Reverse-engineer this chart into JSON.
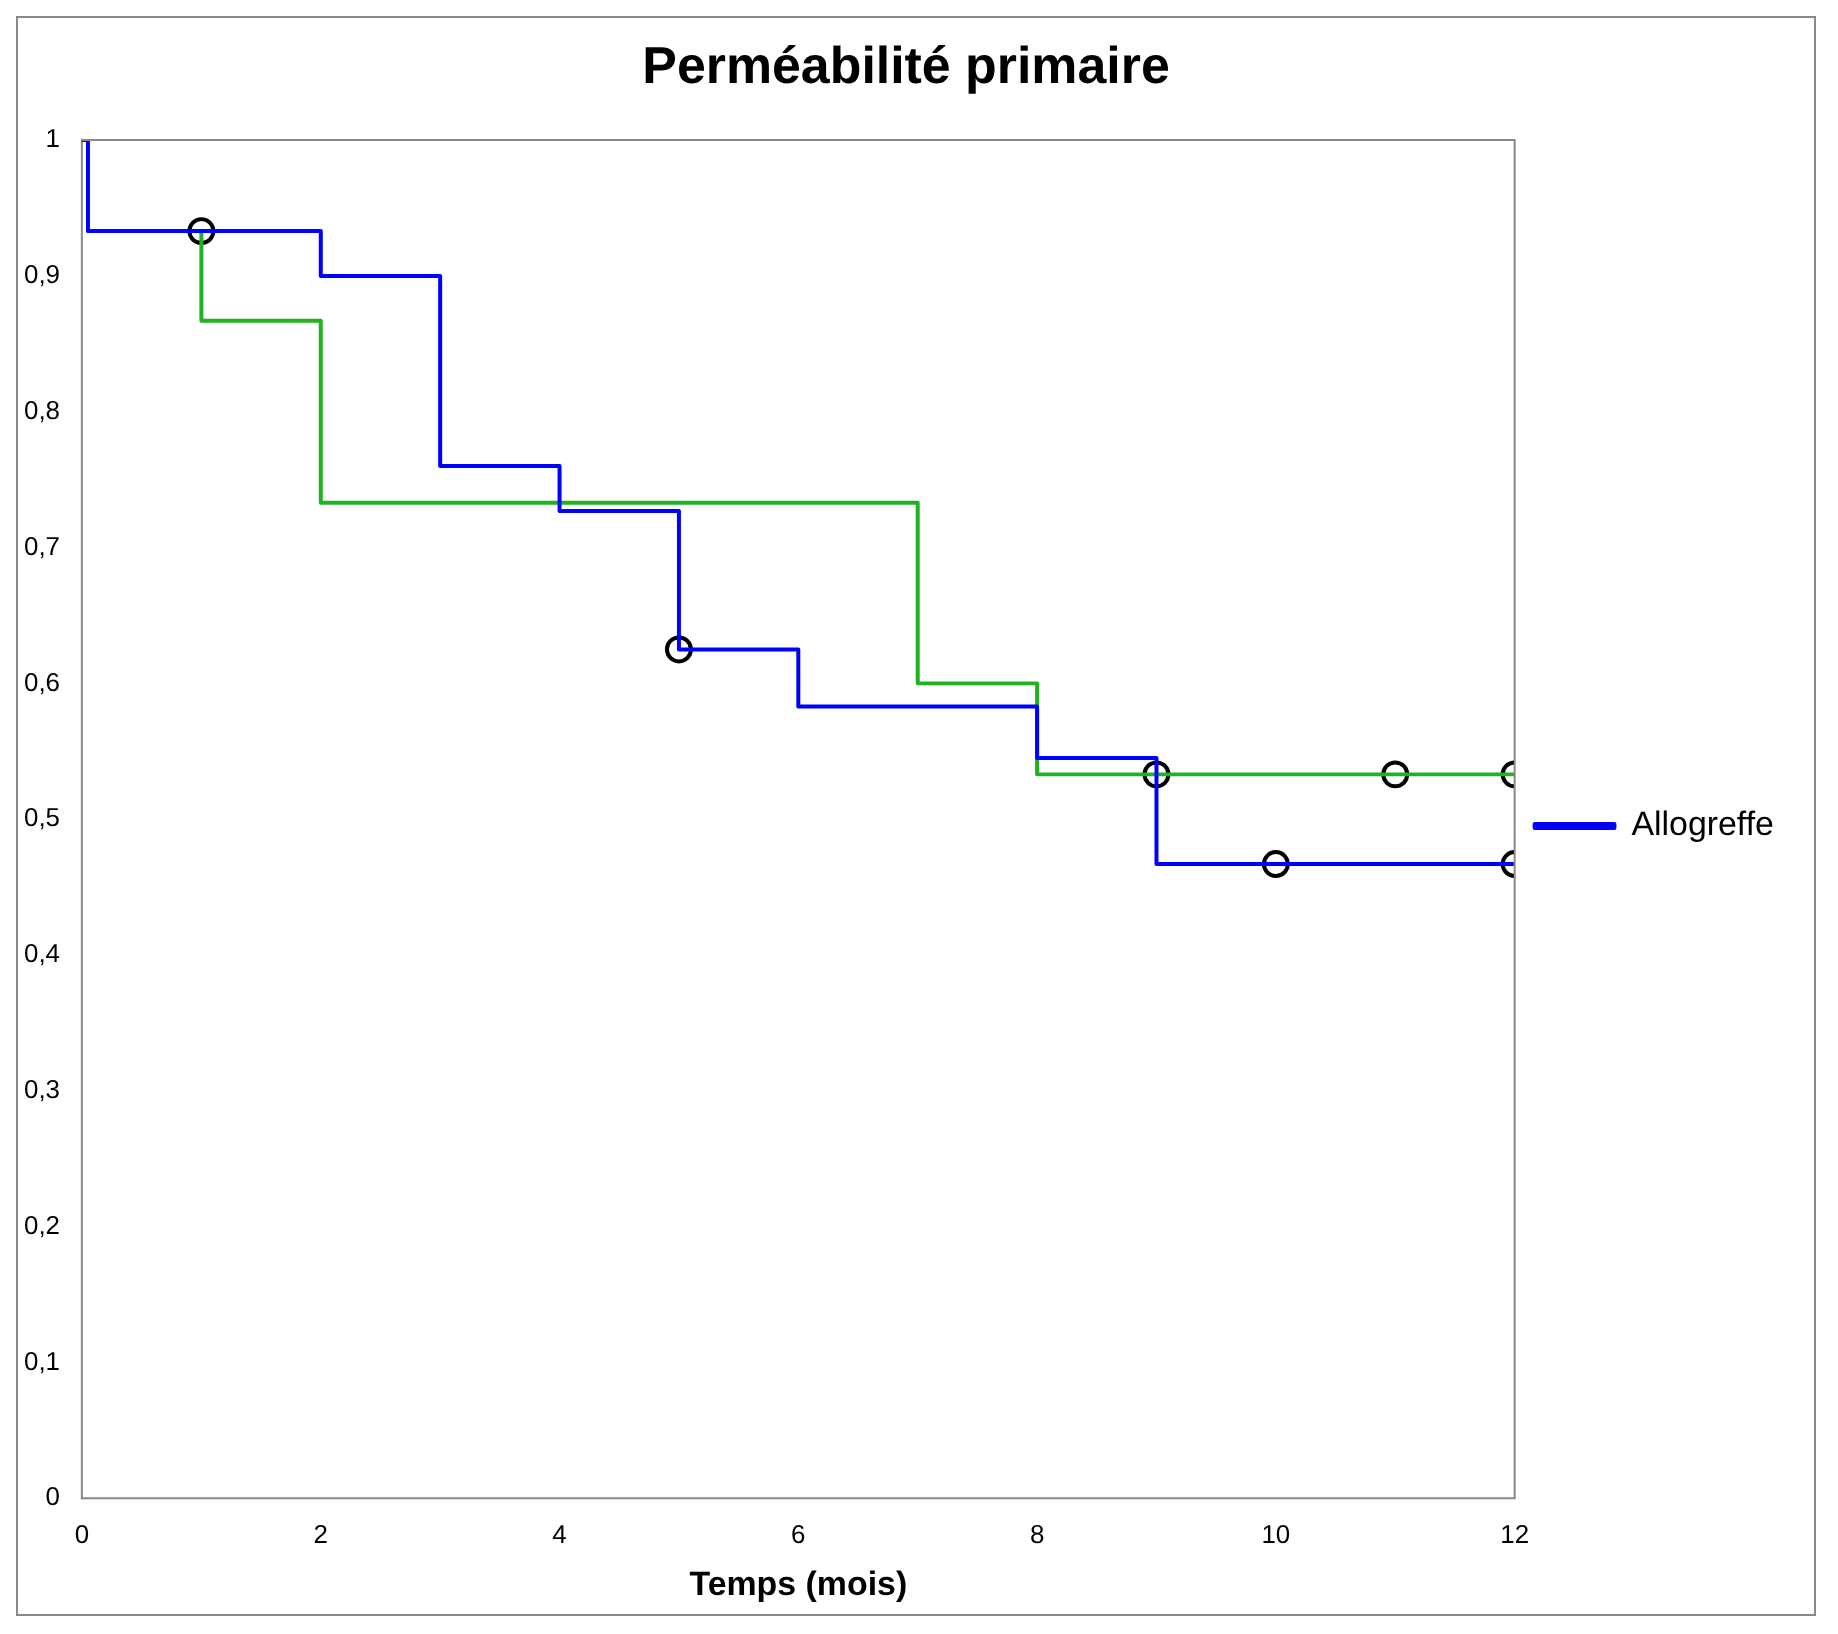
{
  "chart_data": {
    "type": "step",
    "title": "Perméabilité primaire",
    "xlabel": "Temps (mois)",
    "xlim": [
      0,
      12
    ],
    "xticks": [
      0,
      2,
      4,
      6,
      8,
      10,
      12
    ],
    "ylim": [
      0,
      1
    ],
    "yticks": [
      0,
      {
        "value": 0.1,
        "label": "0,1"
      },
      {
        "value": 0.2,
        "label": "0,2"
      },
      {
        "value": 0.3,
        "label": "0,3"
      },
      {
        "value": 0.4,
        "label": "0,4"
      },
      {
        "value": 0.5,
        "label": "0,5"
      },
      {
        "value": 0.6,
        "label": "0,6"
      },
      {
        "value": 0.7,
        "label": "0,7"
      },
      {
        "value": 0.8,
        "label": "0,8"
      },
      {
        "value": 0.9,
        "label": "0,9"
      },
      1
    ],
    "grid": false,
    "legend": "right",
    "series": [
      {
        "name": "Allogreffe",
        "color": "#0000ff",
        "x": [
          0,
          0.05,
          2,
          3,
          4,
          5,
          6,
          8,
          9,
          12
        ],
        "values": [
          1,
          0.933,
          0.9,
          0.76,
          0.727,
          0.625,
          0.583,
          0.545,
          0.467,
          0.467
        ]
      },
      {
        "color": "#1fb31f",
        "x": [
          0,
          0.05,
          1,
          2,
          7,
          8,
          12
        ],
        "values": [
          1,
          0.933,
          0.867,
          0.733,
          0.6,
          0.533,
          0.533
        ]
      },
      {
        "type": "scatter",
        "marker": "circle",
        "color": "#000000",
        "x": [
          1,
          5,
          10,
          12
        ],
        "values": [
          0.933,
          0.625,
          0.467,
          0.467
        ]
      },
      {
        "type": "scatter",
        "marker": "circle",
        "color": "#000000",
        "x": [
          9,
          11,
          12
        ],
        "values": [
          0.533,
          0.533,
          0.533
        ]
      }
    ]
  }
}
